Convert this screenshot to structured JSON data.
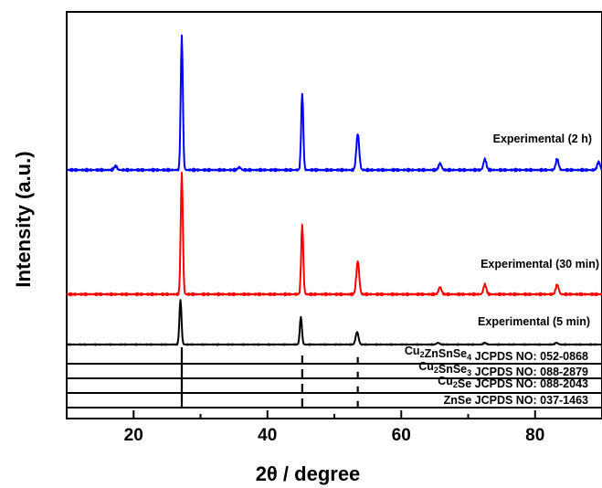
{
  "chart_data": {
    "type": "line",
    "xlabel": "2θ / degree",
    "ylabel": "Intensity (a.u.)",
    "xlim": [
      10,
      90
    ],
    "xticks": [
      20,
      40,
      60,
      80
    ],
    "yticks_shown": false,
    "grid": false,
    "series": [
      {
        "name": "Experimental (2 h)",
        "color": "#0000ff",
        "peaks": [
          {
            "x": 17.3,
            "y": 0.03
          },
          {
            "x": 27.2,
            "y": 1.0
          },
          {
            "x": 35.8,
            "y": 0.02
          },
          {
            "x": 45.2,
            "y": 0.57
          },
          {
            "x": 53.5,
            "y": 0.27
          },
          {
            "x": 65.8,
            "y": 0.05
          },
          {
            "x": 72.5,
            "y": 0.08
          },
          {
            "x": 83.3,
            "y": 0.08
          },
          {
            "x": 89.5,
            "y": 0.06
          }
        ]
      },
      {
        "name": "Experimental (30 min)",
        "color": "#ff0000",
        "peaks": [
          {
            "x": 27.2,
            "y": 1.0
          },
          {
            "x": 45.2,
            "y": 0.57
          },
          {
            "x": 53.5,
            "y": 0.27
          },
          {
            "x": 65.8,
            "y": 0.06
          },
          {
            "x": 72.5,
            "y": 0.08
          },
          {
            "x": 83.3,
            "y": 0.08
          }
        ]
      },
      {
        "name": "Experimental (5 min)",
        "color": "#000000",
        "peaks": [
          {
            "x": 27.0,
            "y": 1.0
          },
          {
            "x": 45.0,
            "y": 0.62
          },
          {
            "x": 53.4,
            "y": 0.28
          },
          {
            "x": 65.5,
            "y": 0.04
          },
          {
            "x": 72.5,
            "y": 0.04
          },
          {
            "x": 83.2,
            "y": 0.04
          }
        ]
      }
    ],
    "references": [
      {
        "formula": [
          {
            "t": "Cu"
          },
          {
            "t": "2",
            "sub": true
          },
          {
            "t": "ZnSnSe"
          },
          {
            "t": "4",
            "sub": true
          }
        ],
        "card": "JCPDS NO: 052-0868",
        "peaks": [
          {
            "x": 27.2,
            "y": 1.0
          },
          {
            "x": 45.2,
            "y": 0.5
          },
          {
            "x": 53.5,
            "y": 0.4
          }
        ]
      },
      {
        "formula": [
          {
            "t": "Cu"
          },
          {
            "t": "2",
            "sub": true
          },
          {
            "t": "SnSe"
          },
          {
            "t": "3",
            "sub": true
          }
        ],
        "card": "JCPDS NO: 088-2879",
        "peaks": [
          {
            "x": 27.2,
            "y": 1.0
          },
          {
            "x": 45.2,
            "y": 0.55
          },
          {
            "x": 53.5,
            "y": 0.4
          }
        ]
      },
      {
        "formula": [
          {
            "t": "Cu"
          },
          {
            "t": "2",
            "sub": true
          },
          {
            "t": "Se"
          }
        ],
        "card": "JCPDS NO: 088-2043",
        "peaks": [
          {
            "x": 27.2,
            "y": 1.0
          },
          {
            "x": 45.2,
            "y": 0.55
          },
          {
            "x": 53.5,
            "y": 0.4
          }
        ]
      },
      {
        "formula": [
          {
            "t": "ZnSe"
          }
        ],
        "card": "JCPDS NO: 037-1463",
        "peaks": [
          {
            "x": 27.2,
            "y": 1.0
          },
          {
            "x": 45.2,
            "y": 0.55
          },
          {
            "x": 53.5,
            "y": 0.4
          }
        ]
      }
    ]
  }
}
